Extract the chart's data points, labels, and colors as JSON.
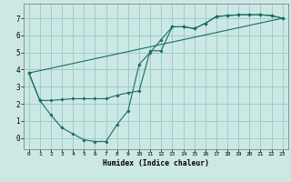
{
  "xlabel": "Humidex (Indice chaleur)",
  "bg_color": "#cce8e4",
  "grid_color": "#99c8c4",
  "line_color": "#1a6e60",
  "xlim": [
    -0.5,
    23.5
  ],
  "ylim": [
    -0.65,
    7.85
  ],
  "xticks": [
    0,
    1,
    2,
    3,
    4,
    5,
    6,
    7,
    8,
    9,
    10,
    11,
    12,
    13,
    14,
    15,
    16,
    17,
    18,
    19,
    20,
    21,
    22,
    23
  ],
  "yticks": [
    0,
    1,
    2,
    3,
    4,
    5,
    6,
    7
  ],
  "line1_x": [
    0,
    1,
    2,
    3,
    4,
    5,
    6,
    7,
    8,
    9,
    10,
    11,
    12,
    13,
    14,
    15,
    16,
    17,
    18,
    19,
    20,
    21,
    22,
    23
  ],
  "line1_y": [
    3.8,
    2.2,
    1.35,
    0.6,
    0.25,
    -0.1,
    -0.2,
    -0.2,
    0.8,
    1.6,
    4.3,
    5.0,
    5.75,
    6.5,
    6.5,
    6.4,
    6.7,
    7.1,
    7.15,
    7.2,
    7.2,
    7.2,
    7.15,
    7.0
  ],
  "line2_x": [
    0,
    1,
    2,
    3,
    4,
    5,
    6,
    7,
    8,
    9,
    10,
    11,
    12,
    13,
    14,
    15,
    16,
    17,
    18,
    19,
    20,
    21,
    22,
    23
  ],
  "line2_y": [
    3.8,
    2.2,
    2.2,
    2.25,
    2.3,
    2.3,
    2.3,
    2.3,
    2.5,
    2.65,
    2.75,
    5.1,
    5.1,
    6.5,
    6.5,
    6.4,
    6.7,
    7.1,
    7.15,
    7.2,
    7.2,
    7.2,
    7.15,
    7.0
  ],
  "line3_x": [
    0,
    23
  ],
  "line3_y": [
    3.8,
    7.0
  ]
}
